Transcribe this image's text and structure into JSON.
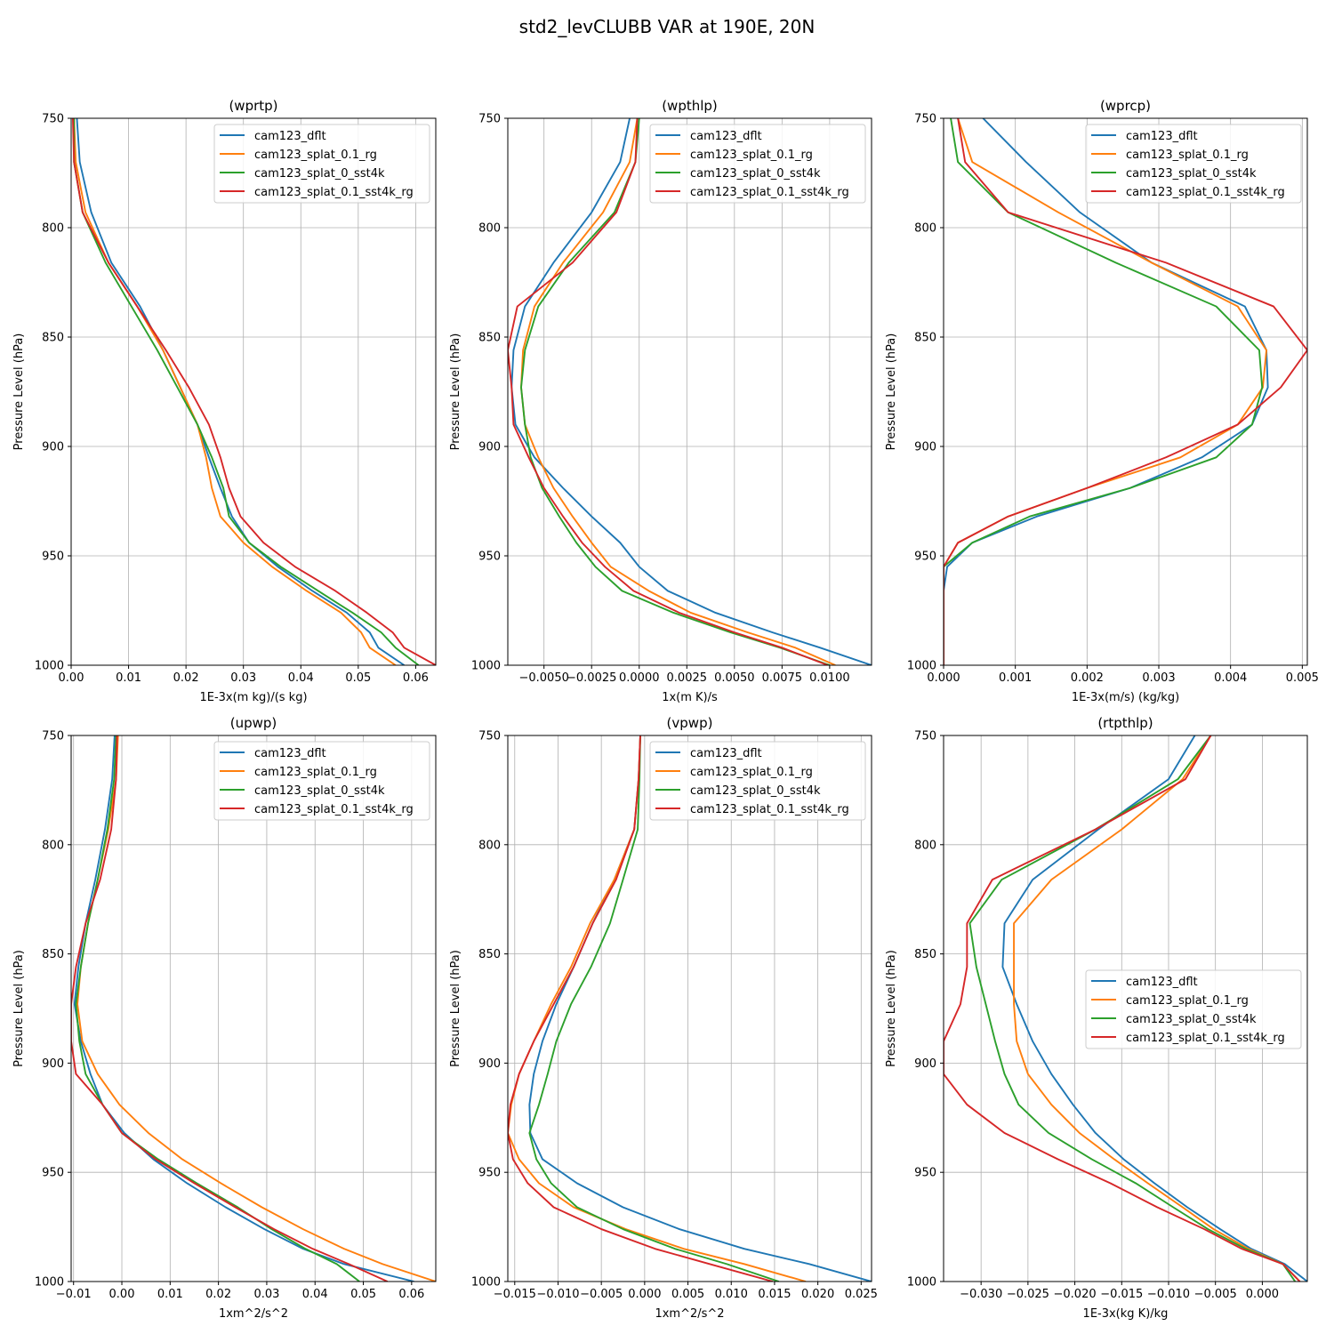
{
  "figure": {
    "suptitle": "std2_levCLUBB VAR at 190E, 20N"
  },
  "series_names": [
    "cam123_dflt",
    "cam123_splat_0.1_rg",
    "cam123_splat_0_sst4k",
    "cam123_splat_0.1_sst4k_rg"
  ],
  "series_colors": [
    "#1f77b4",
    "#ff7f0e",
    "#2ca02c",
    "#d62728"
  ],
  "levels": [
    750,
    770,
    793,
    816,
    836,
    856,
    873,
    890,
    905,
    919,
    932,
    944,
    955,
    966,
    976,
    985,
    992,
    1000
  ],
  "chart_data": [
    {
      "type": "line",
      "title": "(wprtp)",
      "xlabel": "1E-3x(m kg)/(s kg)",
      "ylabel": "Pressure Level (hPa)",
      "xlim": [
        0.0,
        0.0635
      ],
      "ylim": [
        1000,
        750
      ],
      "xticks": [
        0.0,
        0.01,
        0.02,
        0.03,
        0.04,
        0.05,
        0.06
      ],
      "xtick_labels": [
        "0.00",
        "0.01",
        "0.02",
        "0.03",
        "0.04",
        "0.05",
        "0.06"
      ],
      "yticks": [
        750,
        800,
        850,
        900,
        950,
        1000
      ],
      "legend": "upper right",
      "series": [
        {
          "name": "cam123_dflt",
          "values": [
            0.001,
            0.0015,
            0.0035,
            0.007,
            0.012,
            0.016,
            0.019,
            0.022,
            0.024,
            0.026,
            0.028,
            0.031,
            0.036,
            0.042,
            0.048,
            0.052,
            0.0535,
            0.058
          ]
        },
        {
          "name": "cam123_splat_0.1_rg",
          "values": [
            0.0005,
            0.0008,
            0.0025,
            0.0065,
            0.0115,
            0.016,
            0.019,
            0.022,
            0.0235,
            0.0245,
            0.026,
            0.03,
            0.035,
            0.041,
            0.047,
            0.0505,
            0.052,
            0.0565
          ]
        },
        {
          "name": "cam123_splat_0_sst4k",
          "values": [
            0.0005,
            0.0005,
            0.002,
            0.006,
            0.0105,
            0.015,
            0.0185,
            0.022,
            0.0245,
            0.0265,
            0.0275,
            0.031,
            0.0365,
            0.043,
            0.049,
            0.054,
            0.0565,
            0.0605
          ]
        },
        {
          "name": "cam123_splat_0.1_sst4k_rg",
          "values": [
            0.0003,
            0.0005,
            0.002,
            0.0065,
            0.0115,
            0.0165,
            0.0205,
            0.024,
            0.026,
            0.0275,
            0.0295,
            0.0335,
            0.039,
            0.046,
            0.0515,
            0.056,
            0.058,
            0.0635
          ]
        }
      ]
    },
    {
      "type": "line",
      "title": "(wpthlp)",
      "xlabel": "1x(m K)/s",
      "ylabel": "Pressure Level (hPa)",
      "xlim": [
        -0.0069,
        0.0122
      ],
      "ylim": [
        1000,
        750
      ],
      "xticks": [
        -0.005,
        -0.0025,
        0.0,
        0.0025,
        0.005,
        0.0075,
        0.01
      ],
      "xtick_labels": [
        "−0.0050",
        "−0.0025",
        "0.0000",
        "0.0025",
        "0.0050",
        "0.0075",
        "0.0100"
      ],
      "yticks": [
        750,
        800,
        850,
        900,
        950,
        1000
      ],
      "legend": "upper right",
      "series": [
        {
          "name": "cam123_dflt",
          "values": [
            -0.0005,
            -0.001,
            -0.0025,
            -0.0045,
            -0.006,
            -0.0066,
            -0.0067,
            -0.0065,
            -0.0055,
            -0.004,
            -0.0025,
            -0.001,
            0.0,
            0.0015,
            0.004,
            0.007,
            0.0095,
            0.0122
          ]
        },
        {
          "name": "cam123_splat_0.1_rg",
          "values": [
            -0.0001,
            -0.0005,
            -0.0019,
            -0.004,
            -0.0055,
            -0.0061,
            -0.0062,
            -0.006,
            -0.0053,
            -0.0045,
            -0.0035,
            -0.0025,
            -0.0015,
            0.0005,
            0.0027,
            0.0057,
            0.0082,
            0.0103
          ]
        },
        {
          "name": "cam123_splat_0_sst4k",
          "values": [
            0.0,
            -0.0002,
            -0.0013,
            -0.0037,
            -0.0053,
            -0.006,
            -0.0062,
            -0.006,
            -0.0057,
            -0.0051,
            -0.0042,
            -0.0033,
            -0.0023,
            -0.0009,
            0.0018,
            0.0048,
            0.0074,
            0.01
          ]
        },
        {
          "name": "cam123_splat_0.1_sst4k_rg",
          "values": [
            -0.0001,
            -0.0002,
            -0.0012,
            -0.0035,
            -0.0064,
            -0.0069,
            -0.0067,
            -0.0066,
            -0.0058,
            -0.005,
            -0.004,
            -0.003,
            -0.0018,
            -0.0003,
            0.0021,
            0.005,
            0.0075,
            0.0099
          ]
        }
      ]
    },
    {
      "type": "line",
      "title": "(wprcp)",
      "xlabel": "1E-3x(m/s) (kg/kg)",
      "ylabel": "Pressure Level (hPa)",
      "xlim": [
        0.0,
        0.00507
      ],
      "ylim": [
        1000,
        750
      ],
      "xticks": [
        0.0,
        0.001,
        0.002,
        0.003,
        0.004,
        0.005
      ],
      "xtick_labels": [
        "0.000",
        "0.001",
        "0.002",
        "0.003",
        "0.004",
        "0.005"
      ],
      "yticks": [
        750,
        800,
        850,
        900,
        950,
        1000
      ],
      "legend": "upper right",
      "series": [
        {
          "name": "cam123_dflt",
          "values": [
            0.00055,
            0.00115,
            0.0019,
            0.0029,
            0.0042,
            0.0045,
            0.00452,
            0.0043,
            0.0036,
            0.0026,
            0.0013,
            0.0004,
            5e-05,
            0.0,
            0.0,
            0.0,
            0.0,
            0.0
          ]
        },
        {
          "name": "cam123_splat_0.1_rg",
          "values": [
            0.0002,
            0.0004,
            0.0016,
            0.0029,
            0.0041,
            0.0045,
            0.00445,
            0.0041,
            0.0033,
            0.002,
            0.0009,
            0.0002,
            0.0,
            0.0,
            0.0,
            0.0,
            0.0,
            0.0
          ]
        },
        {
          "name": "cam123_splat_0_sst4k",
          "values": [
            0.0001,
            0.0002,
            0.0009,
            0.0024,
            0.0038,
            0.0044,
            0.00444,
            0.0043,
            0.0038,
            0.0026,
            0.0012,
            0.0004,
            0.0,
            0.0,
            0.0,
            0.0,
            0.0,
            0.0
          ]
        },
        {
          "name": "cam123_splat_0.1_sst4k_rg",
          "values": [
            0.0002,
            0.0003,
            0.0009,
            0.0031,
            0.0046,
            0.00507,
            0.0047,
            0.0041,
            0.0031,
            0.002,
            0.0009,
            0.0002,
            0.0,
            0.0,
            0.0,
            0.0,
            0.0,
            0.0
          ]
        }
      ]
    },
    {
      "type": "line",
      "title": "(upwp)",
      "xlabel": "1xm^2/s^2",
      "ylabel": "Pressure Level (hPa)",
      "xlim": [
        -0.0105,
        0.065
      ],
      "ylim": [
        1000,
        750
      ],
      "xticks": [
        -0.01,
        0.0,
        0.01,
        0.02,
        0.03,
        0.04,
        0.05,
        0.06
      ],
      "xtick_labels": [
        "−0.01",
        "0.00",
        "0.01",
        "0.02",
        "0.03",
        "0.04",
        "0.05",
        "0.06"
      ],
      "yticks": [
        750,
        800,
        850,
        900,
        950,
        1000
      ],
      "legend": "upper right",
      "series": [
        {
          "name": "cam123_dflt",
          "values": [
            -0.0015,
            -0.002,
            -0.0035,
            -0.0055,
            -0.0075,
            -0.009,
            -0.0098,
            -0.0085,
            -0.0065,
            -0.004,
            0.0005,
            0.0065,
            0.0135,
            0.0215,
            0.0295,
            0.0375,
            0.046,
            0.0605
          ]
        },
        {
          "name": "cam123_splat_0.1_rg",
          "values": [
            -0.0008,
            -0.0012,
            -0.0028,
            -0.005,
            -0.007,
            -0.0085,
            -0.0092,
            -0.0082,
            -0.005,
            -0.0005,
            0.0055,
            0.0125,
            0.0205,
            0.029,
            0.0375,
            0.046,
            0.054,
            0.065
          ]
        },
        {
          "name": "cam123_splat_0_sst4k",
          "values": [
            -0.0012,
            -0.0016,
            -0.003,
            -0.005,
            -0.007,
            -0.0085,
            -0.0095,
            -0.0088,
            -0.0075,
            -0.004,
            0.0,
            0.0075,
            0.0155,
            0.024,
            0.031,
            0.038,
            0.0445,
            0.0492
          ]
        },
        {
          "name": "cam123_splat_0.1_sst4k_rg",
          "values": [
            -0.001,
            -0.0012,
            -0.0022,
            -0.0045,
            -0.0075,
            -0.0095,
            -0.0105,
            -0.0105,
            -0.0095,
            -0.004,
            0.0,
            0.007,
            0.015,
            0.0235,
            0.0315,
            0.0395,
            0.047,
            0.055
          ]
        }
      ]
    },
    {
      "type": "line",
      "title": "(vpwp)",
      "xlabel": "1xm^2/s^2",
      "ylabel": "Pressure Level (hPa)",
      "xlim": [
        -0.0158,
        0.0262
      ],
      "ylim": [
        1000,
        750
      ],
      "xticks": [
        -0.015,
        -0.01,
        -0.005,
        0.0,
        0.005,
        0.01,
        0.015,
        0.02,
        0.025
      ],
      "xtick_labels": [
        "−0.015",
        "−0.010",
        "−0.005",
        "0.000",
        "0.005",
        "0.010",
        "0.015",
        "0.020",
        "0.025"
      ],
      "yticks": [
        750,
        800,
        850,
        900,
        950,
        1000
      ],
      "legend": "upper right",
      "series": [
        {
          "name": "cam123_dflt",
          "values": [
            -0.0005,
            -0.0007,
            -0.0012,
            -0.0035,
            -0.006,
            -0.0082,
            -0.0102,
            -0.0118,
            -0.0128,
            -0.0133,
            -0.0132,
            -0.0118,
            -0.0078,
            -0.0025,
            0.004,
            0.0115,
            0.019,
            0.0262
          ]
        },
        {
          "name": "cam123_splat_0.1_rg",
          "values": [
            -0.0005,
            -0.0007,
            -0.0012,
            -0.0035,
            -0.0063,
            -0.0085,
            -0.0108,
            -0.0128,
            -0.0145,
            -0.0154,
            -0.0158,
            -0.0145,
            -0.0122,
            -0.0082,
            -0.0022,
            0.0045,
            0.0115,
            0.0186
          ]
        },
        {
          "name": "cam123_splat_0_sst4k",
          "values": [
            -0.0005,
            -0.0006,
            -0.0008,
            -0.0025,
            -0.004,
            -0.0062,
            -0.0085,
            -0.0102,
            -0.0112,
            -0.0122,
            -0.0133,
            -0.0125,
            -0.0108,
            -0.0078,
            -0.0025,
            0.0035,
            0.0095,
            0.0155
          ]
        },
        {
          "name": "cam123_splat_0.1_sst4k_rg",
          "values": [
            -0.0005,
            -0.0007,
            -0.0012,
            -0.0033,
            -0.006,
            -0.0082,
            -0.0105,
            -0.0128,
            -0.0145,
            -0.0155,
            -0.0158,
            -0.0152,
            -0.0135,
            -0.0105,
            -0.005,
            0.0012,
            0.0075,
            0.0148
          ]
        }
      ]
    },
    {
      "type": "line",
      "title": "(rtpthlp)",
      "xlabel": "1E-3x(kg K)/kg",
      "ylabel": "Pressure Level (hPa)",
      "xlim": [
        -0.034,
        0.0048
      ],
      "ylim": [
        1000,
        750
      ],
      "xticks": [
        -0.03,
        -0.025,
        -0.02,
        -0.015,
        -0.01,
        -0.005,
        0.0
      ],
      "xtick_labels": [
        "−0.030",
        "−0.025",
        "−0.020",
        "−0.015",
        "−0.010",
        "−0.005",
        "0.000"
      ],
      "yticks": [
        750,
        800,
        850,
        900,
        950,
        1000
      ],
      "legend": "center right",
      "series": [
        {
          "name": "cam123_dflt",
          "values": [
            -0.0072,
            -0.01,
            -0.0175,
            -0.0245,
            -0.0275,
            -0.0277,
            -0.0262,
            -0.0245,
            -0.0225,
            -0.0202,
            -0.0178,
            -0.0148,
            -0.0115,
            -0.008,
            -0.0045,
            -0.0012,
            0.0024,
            0.0048
          ]
        },
        {
          "name": "cam123_splat_0.1_rg",
          "values": [
            -0.0055,
            -0.0085,
            -0.015,
            -0.0225,
            -0.0265,
            -0.0265,
            -0.0265,
            -0.0262,
            -0.025,
            -0.0225,
            -0.0195,
            -0.0158,
            -0.0122,
            -0.0085,
            -0.0052,
            -0.0015,
            0.0022,
            0.004
          ]
        },
        {
          "name": "cam123_splat_0_sst4k",
          "values": [
            -0.0055,
            -0.009,
            -0.0178,
            -0.0278,
            -0.0312,
            -0.0305,
            -0.0295,
            -0.0285,
            -0.0275,
            -0.026,
            -0.0228,
            -0.0182,
            -0.0135,
            -0.0095,
            -0.0058,
            -0.0018,
            0.0022,
            0.0035
          ]
        },
        {
          "name": "cam123_splat_0.1_sst4k_rg",
          "values": [
            -0.0055,
            -0.0082,
            -0.0178,
            -0.0288,
            -0.0315,
            -0.0315,
            -0.0322,
            -0.034,
            -0.034,
            -0.0315,
            -0.0275,
            -0.0218,
            -0.0162,
            -0.0112,
            -0.0062,
            -0.0022,
            0.0022,
            0.004
          ]
        }
      ]
    }
  ]
}
